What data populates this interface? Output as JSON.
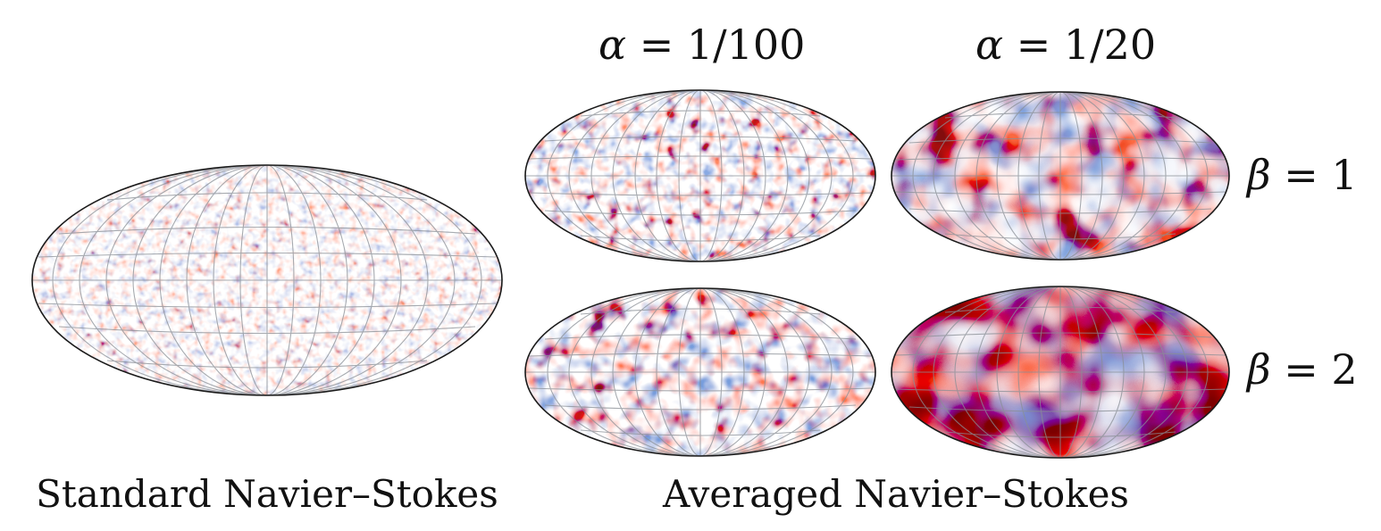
{
  "figure": {
    "left_caption": "Standard Navier–Stokes",
    "right_caption": "Averaged Navier–Stokes",
    "column_headers": [
      {
        "symbol": "α",
        "value": " = 1/100"
      },
      {
        "symbol": "α",
        "value": " = 1/20"
      }
    ],
    "row_labels": [
      {
        "symbol": "β",
        "value": " = 1"
      },
      {
        "symbol": "β",
        "value": " = 2"
      }
    ],
    "panels": [
      {
        "name": "standard",
        "texture": "fine",
        "colormap": "blue-white-red"
      },
      {
        "name": "alpha-1-100-beta-1",
        "texture": "fine-medium",
        "colormap": "blue-white-red"
      },
      {
        "name": "alpha-1-20-beta-1",
        "texture": "coarse",
        "colormap": "blue-white-red"
      },
      {
        "name": "alpha-1-100-beta-2",
        "texture": "medium",
        "colormap": "blue-white-red"
      },
      {
        "name": "alpha-1-20-beta-2",
        "texture": "very-coarse",
        "colormap": "blue-white-red"
      }
    ],
    "colors": {
      "positive": "#b2182b",
      "negative": "#2166ac",
      "neutral": "#f7f7f7"
    }
  }
}
